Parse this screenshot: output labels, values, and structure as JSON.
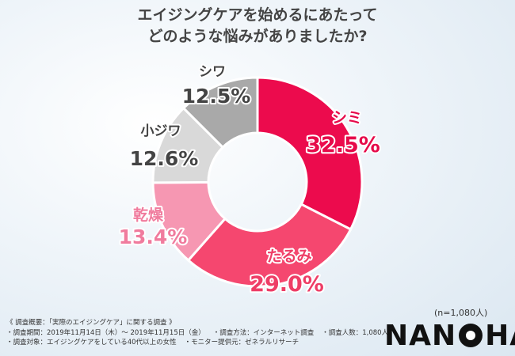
{
  "title": {
    "line1": "エイジングケアを始めるにあたって",
    "line2": "どのような悩みがありましたか?"
  },
  "chart_data": {
    "type": "pie",
    "donut": true,
    "sample_size": "(n=1,080人)",
    "slices": [
      {
        "label": "シミ",
        "value": 32.5,
        "value_label": "32.5%",
        "color": "#ec0b4d",
        "label_color": "#e60a4a"
      },
      {
        "label": "たるみ",
        "value": 29.0,
        "value_label": "29.0%",
        "color": "#f5476f",
        "label_color": "#ee3d66"
      },
      {
        "label": "乾燥",
        "value": 13.4,
        "value_label": "13.4%",
        "color": "#f697b2",
        "label_color": "#f07b9d"
      },
      {
        "label": "小ジワ",
        "value": 12.6,
        "value_label": "12.6%",
        "color": "#d9d9d9",
        "label_color": "#444444"
      },
      {
        "label": "シワ",
        "value": 12.5,
        "value_label": "12.5%",
        "color": "#a9a9a9",
        "label_color": "#444444"
      }
    ]
  },
  "notes": {
    "rows": [
      [
        "《 調査概要：「実際のエイジングケア」に関する調査 》"
      ],
      [
        "・調査期間：2019年11月14日（木）～ 2019年11月15日（金）",
        "・調査方法：インターネット調査",
        "・調査人数：1,080人"
      ],
      [
        "・調査対象：エイジングケアをしている40代以上の女性",
        "・モニター提供元：ゼネラルリサーチ"
      ]
    ]
  },
  "logo": {
    "left": "NAN",
    "right": "HA"
  }
}
